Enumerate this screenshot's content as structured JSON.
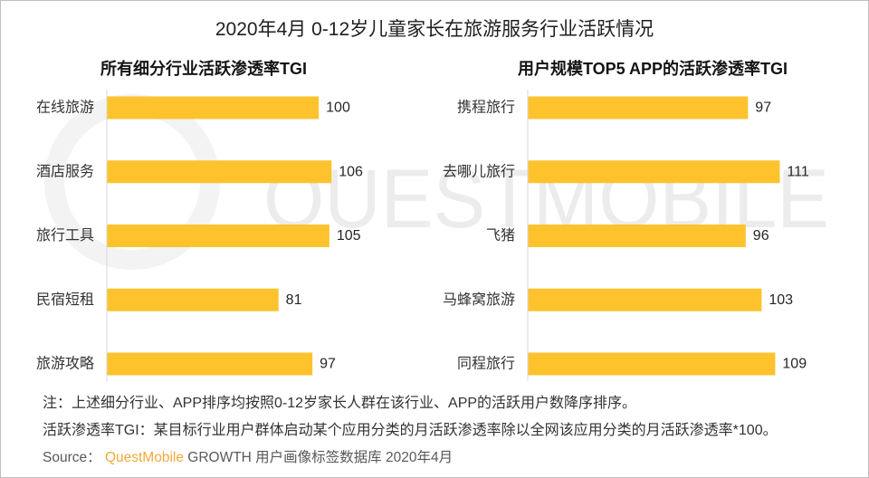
{
  "title": "2020年4月 0-12岁儿童家长在旅游服务行业活跃情况",
  "watermark": "QUESTMOBILE",
  "colors": {
    "bar": "#FEC32C",
    "brand": "#F2A93B",
    "axis": "#D9D9D9",
    "watermark": "#ECECEC"
  },
  "chart_data": [
    {
      "type": "bar",
      "title": "所有细分行业活跃渗透率TGI",
      "categories": [
        "在线旅游",
        "酒店服务",
        "旅行工具",
        "民宿短租",
        "旅游攻略"
      ],
      "values": [
        100,
        106,
        105,
        81,
        97
      ],
      "xlabel": "",
      "ylabel": "",
      "xlim": [
        0,
        120
      ]
    },
    {
      "type": "bar",
      "title": "用户规模TOP5 APP的活跃渗透率TGI",
      "categories": [
        "携程旅行",
        "去哪儿旅行",
        "飞猪",
        "马蜂窝旅游",
        "同程旅行"
      ],
      "values": [
        97,
        111,
        96,
        103,
        109
      ],
      "xlabel": "",
      "ylabel": "",
      "xlim": [
        0,
        120
      ]
    }
  ],
  "notes": {
    "line1": "注：上述细分行业、APP排序均按照0-12岁家长人群在该行业、APP的活跃用户数降序排序。",
    "line2": "活跃渗透率TGI：某目标行业用户群体启动某个应用分类的月活跃渗透率除以全网该应用分类的月活跃渗透率*100。",
    "source_label": "Source：",
    "source_brand": "QuestMobile",
    "source_text": "GROWTH 用户画像标签数据库 2020年4月"
  }
}
